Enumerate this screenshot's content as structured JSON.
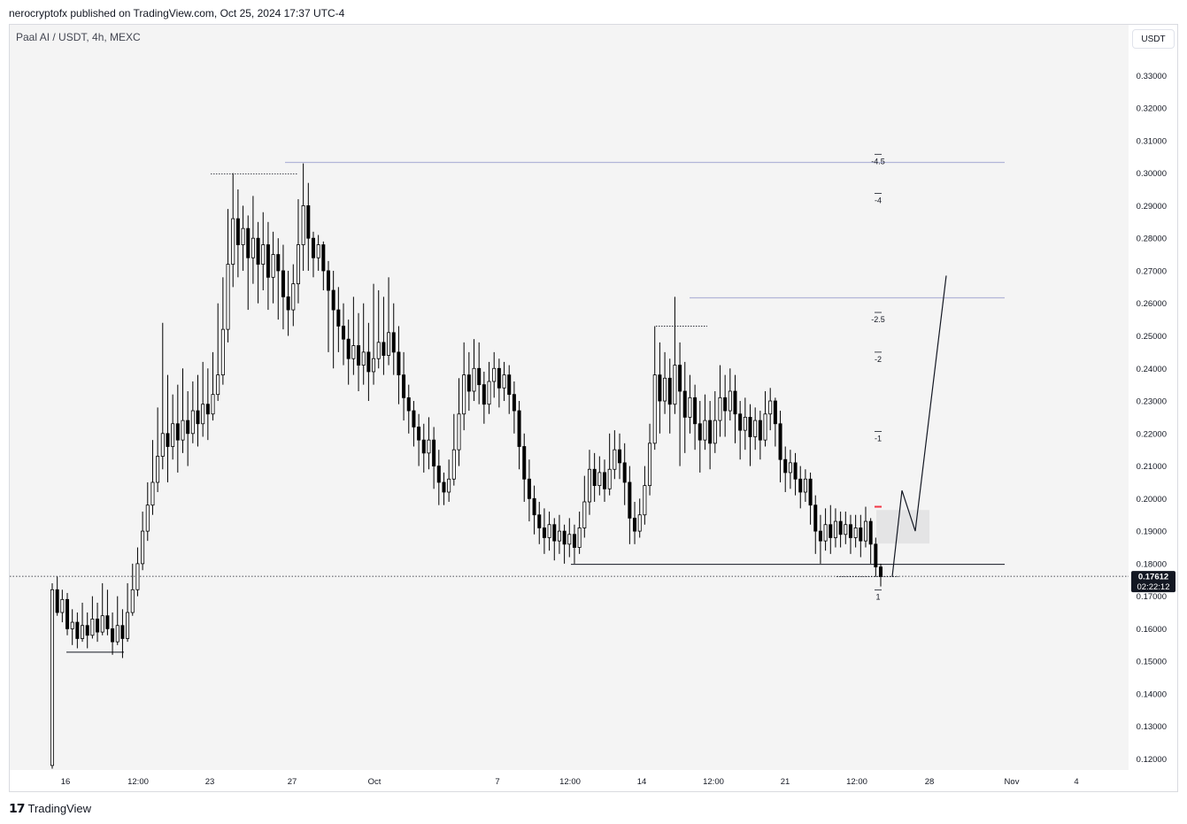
{
  "header": {
    "published": "nerocryptofx published on TradingView.com, Oct 25, 2024 17:37 UTC-4"
  },
  "chart_header": {
    "symbol": "Paal AI / USDT, 4h, MEXC",
    "currency_button": "USDT"
  },
  "footer": {
    "brand": "TradingView"
  },
  "colors": {
    "background": "#f4f4f4",
    "candle_up": "#ffffff",
    "candle_down": "#000000",
    "level_line": "#b2b5d8",
    "price_label_bg": "#131722",
    "bar_marker": "#f23645"
  },
  "price_tag": {
    "price": "0.17612",
    "countdown": "02:22:12"
  },
  "chart_data": {
    "type": "candlestick",
    "title": "Paal AI / USDT, 4h, MEXC",
    "y_axis": {
      "range": [
        0.115,
        0.336
      ],
      "ticks": [
        "0.33000",
        "0.32000",
        "0.31000",
        "0.30000",
        "0.29000",
        "0.28000",
        "0.27000",
        "0.26000",
        "0.25000",
        "0.24000",
        "0.23000",
        "0.22000",
        "0.21000",
        "0.20000",
        "0.19000",
        "0.18000",
        "0.17000",
        "0.16000",
        "0.15000",
        "0.14000",
        "0.13000",
        "0.12000"
      ]
    },
    "x_axis": {
      "ticks": [
        "16",
        "12:00",
        "23",
        "27",
        "Oct",
        "7",
        "12:00",
        "14",
        "12:00",
        "21",
        "12:00",
        "28",
        "Nov",
        "4"
      ]
    },
    "current_price": 0.17612,
    "levels": [
      {
        "name": "high-level",
        "price": 0.3033
      },
      {
        "name": "mid-level",
        "price": 0.2617
      },
      {
        "name": "support-level",
        "price": 0.1798
      },
      {
        "name": "range-low",
        "price": 0.1528
      }
    ],
    "fib_labels": [
      {
        "label": "-4.5",
        "price": 0.3058
      },
      {
        "label": "-4",
        "price": 0.2938
      },
      {
        "label": "-2.5",
        "price": 0.2572
      },
      {
        "label": "-2",
        "price": 0.245
      },
      {
        "label": "-1",
        "price": 0.2206
      },
      {
        "label": "1",
        "price": 0.1719
      }
    ],
    "projection": [
      0.176,
      0.2025,
      0.19,
      0.2685
    ],
    "candles": [
      [
        0.118,
        0.172,
        0.117,
        0.174
      ],
      [
        0.172,
        0.165,
        0.164,
        0.176
      ],
      [
        0.165,
        0.169,
        0.162,
        0.172
      ],
      [
        0.169,
        0.16,
        0.158,
        0.171
      ],
      [
        0.16,
        0.162,
        0.155,
        0.166
      ],
      [
        0.162,
        0.157,
        0.154,
        0.165
      ],
      [
        0.157,
        0.161,
        0.156,
        0.168
      ],
      [
        0.161,
        0.158,
        0.154,
        0.165
      ],
      [
        0.158,
        0.163,
        0.157,
        0.17
      ],
      [
        0.163,
        0.159,
        0.156,
        0.168
      ],
      [
        0.159,
        0.164,
        0.158,
        0.174
      ],
      [
        0.164,
        0.16,
        0.158,
        0.172
      ],
      [
        0.16,
        0.156,
        0.152,
        0.165
      ],
      [
        0.156,
        0.161,
        0.155,
        0.17
      ],
      [
        0.161,
        0.157,
        0.151,
        0.166
      ],
      [
        0.157,
        0.165,
        0.156,
        0.174
      ],
      [
        0.165,
        0.172,
        0.164,
        0.18
      ],
      [
        0.172,
        0.18,
        0.17,
        0.185
      ],
      [
        0.18,
        0.19,
        0.178,
        0.196
      ],
      [
        0.19,
        0.198,
        0.187,
        0.205
      ],
      [
        0.198,
        0.205,
        0.195,
        0.218
      ],
      [
        0.205,
        0.213,
        0.202,
        0.228
      ],
      [
        0.213,
        0.22,
        0.209,
        0.254
      ],
      [
        0.22,
        0.216,
        0.205,
        0.238
      ],
      [
        0.216,
        0.223,
        0.212,
        0.232
      ],
      [
        0.223,
        0.218,
        0.208,
        0.235
      ],
      [
        0.218,
        0.224,
        0.214,
        0.24
      ],
      [
        0.224,
        0.22,
        0.21,
        0.233
      ],
      [
        0.22,
        0.227,
        0.217,
        0.236
      ],
      [
        0.227,
        0.223,
        0.216,
        0.238
      ],
      [
        0.223,
        0.229,
        0.219,
        0.242
      ],
      [
        0.229,
        0.226,
        0.218,
        0.24
      ],
      [
        0.226,
        0.232,
        0.224,
        0.245
      ],
      [
        0.232,
        0.238,
        0.23,
        0.26
      ],
      [
        0.238,
        0.252,
        0.235,
        0.268
      ],
      [
        0.252,
        0.272,
        0.248,
        0.289
      ],
      [
        0.272,
        0.286,
        0.265,
        0.3
      ],
      [
        0.286,
        0.278,
        0.268,
        0.295
      ],
      [
        0.278,
        0.283,
        0.27,
        0.29
      ],
      [
        0.283,
        0.274,
        0.258,
        0.287
      ],
      [
        0.274,
        0.28,
        0.266,
        0.293
      ],
      [
        0.28,
        0.272,
        0.26,
        0.285
      ],
      [
        0.272,
        0.278,
        0.264,
        0.288
      ],
      [
        0.278,
        0.268,
        0.258,
        0.285
      ],
      [
        0.268,
        0.275,
        0.26,
        0.282
      ],
      [
        0.275,
        0.27,
        0.255,
        0.28
      ],
      [
        0.27,
        0.262,
        0.252,
        0.278
      ],
      [
        0.262,
        0.258,
        0.25,
        0.27
      ],
      [
        0.258,
        0.266,
        0.253,
        0.272
      ],
      [
        0.266,
        0.278,
        0.26,
        0.292
      ],
      [
        0.278,
        0.29,
        0.27,
        0.303
      ],
      [
        0.29,
        0.28,
        0.27,
        0.297
      ],
      [
        0.28,
        0.274,
        0.268,
        0.282
      ],
      [
        0.274,
        0.278,
        0.27,
        0.281
      ],
      [
        0.278,
        0.27,
        0.264,
        0.279
      ],
      [
        0.27,
        0.264,
        0.245,
        0.273
      ],
      [
        0.264,
        0.258,
        0.24,
        0.27
      ],
      [
        0.258,
        0.253,
        0.245,
        0.265
      ],
      [
        0.253,
        0.249,
        0.241,
        0.26
      ],
      [
        0.249,
        0.243,
        0.235,
        0.255
      ],
      [
        0.243,
        0.247,
        0.238,
        0.262
      ],
      [
        0.247,
        0.241,
        0.233,
        0.257
      ],
      [
        0.241,
        0.245,
        0.235,
        0.26
      ],
      [
        0.245,
        0.239,
        0.23,
        0.254
      ],
      [
        0.239,
        0.243,
        0.235,
        0.266
      ],
      [
        0.243,
        0.248,
        0.24,
        0.264
      ],
      [
        0.248,
        0.244,
        0.238,
        0.262
      ],
      [
        0.244,
        0.251,
        0.241,
        0.268
      ],
      [
        0.251,
        0.245,
        0.238,
        0.26
      ],
      [
        0.245,
        0.238,
        0.229,
        0.253
      ],
      [
        0.238,
        0.231,
        0.224,
        0.245
      ],
      [
        0.231,
        0.227,
        0.22,
        0.235
      ],
      [
        0.227,
        0.222,
        0.216,
        0.23
      ],
      [
        0.222,
        0.218,
        0.21,
        0.226
      ],
      [
        0.218,
        0.214,
        0.208,
        0.223
      ],
      [
        0.214,
        0.218,
        0.209,
        0.225
      ],
      [
        0.218,
        0.21,
        0.203,
        0.222
      ],
      [
        0.21,
        0.205,
        0.198,
        0.215
      ],
      [
        0.205,
        0.202,
        0.198,
        0.208
      ],
      [
        0.202,
        0.206,
        0.199,
        0.212
      ],
      [
        0.206,
        0.215,
        0.204,
        0.226
      ],
      [
        0.215,
        0.226,
        0.21,
        0.237
      ],
      [
        0.226,
        0.238,
        0.221,
        0.248
      ],
      [
        0.238,
        0.233,
        0.227,
        0.245
      ],
      [
        0.233,
        0.24,
        0.23,
        0.249
      ],
      [
        0.24,
        0.235,
        0.229,
        0.248
      ],
      [
        0.235,
        0.229,
        0.223,
        0.239
      ],
      [
        0.229,
        0.236,
        0.226,
        0.242
      ],
      [
        0.236,
        0.24,
        0.231,
        0.245
      ],
      [
        0.24,
        0.234,
        0.228,
        0.243
      ],
      [
        0.234,
        0.238,
        0.23,
        0.242
      ],
      [
        0.238,
        0.232,
        0.226,
        0.241
      ],
      [
        0.232,
        0.227,
        0.22,
        0.236
      ],
      [
        0.227,
        0.216,
        0.209,
        0.23
      ],
      [
        0.216,
        0.206,
        0.199,
        0.22
      ],
      [
        0.206,
        0.2,
        0.193,
        0.212
      ],
      [
        0.2,
        0.195,
        0.189,
        0.204
      ],
      [
        0.195,
        0.191,
        0.186,
        0.199
      ],
      [
        0.191,
        0.188,
        0.183,
        0.197
      ],
      [
        0.188,
        0.192,
        0.184,
        0.196
      ],
      [
        0.192,
        0.187,
        0.181,
        0.194
      ],
      [
        0.187,
        0.19,
        0.183,
        0.195
      ],
      [
        0.19,
        0.186,
        0.18,
        0.192
      ],
      [
        0.186,
        0.189,
        0.182,
        0.194
      ],
      [
        0.189,
        0.185,
        0.18,
        0.192
      ],
      [
        0.185,
        0.191,
        0.183,
        0.196
      ],
      [
        0.191,
        0.199,
        0.188,
        0.207
      ],
      [
        0.199,
        0.209,
        0.195,
        0.215
      ],
      [
        0.209,
        0.204,
        0.199,
        0.214
      ],
      [
        0.204,
        0.208,
        0.201,
        0.213
      ],
      [
        0.208,
        0.203,
        0.199,
        0.212
      ],
      [
        0.203,
        0.209,
        0.201,
        0.22
      ],
      [
        0.209,
        0.215,
        0.206,
        0.221
      ],
      [
        0.215,
        0.211,
        0.206,
        0.22
      ],
      [
        0.211,
        0.205,
        0.198,
        0.217
      ],
      [
        0.205,
        0.194,
        0.186,
        0.21
      ],
      [
        0.194,
        0.19,
        0.186,
        0.199
      ],
      [
        0.19,
        0.195,
        0.188,
        0.2
      ],
      [
        0.195,
        0.204,
        0.192,
        0.21
      ],
      [
        0.204,
        0.217,
        0.201,
        0.223
      ],
      [
        0.217,
        0.238,
        0.215,
        0.253
      ],
      [
        0.238,
        0.23,
        0.22,
        0.248
      ],
      [
        0.23,
        0.237,
        0.226,
        0.245
      ],
      [
        0.237,
        0.229,
        0.22,
        0.243
      ],
      [
        0.229,
        0.241,
        0.226,
        0.262
      ],
      [
        0.241,
        0.233,
        0.21,
        0.248
      ],
      [
        0.233,
        0.225,
        0.214,
        0.242
      ],
      [
        0.225,
        0.231,
        0.22,
        0.238
      ],
      [
        0.231,
        0.223,
        0.215,
        0.235
      ],
      [
        0.223,
        0.218,
        0.208,
        0.23
      ],
      [
        0.218,
        0.224,
        0.215,
        0.232
      ],
      [
        0.224,
        0.217,
        0.209,
        0.23
      ],
      [
        0.217,
        0.224,
        0.214,
        0.233
      ],
      [
        0.224,
        0.231,
        0.219,
        0.241
      ],
      [
        0.231,
        0.227,
        0.219,
        0.238
      ],
      [
        0.227,
        0.233,
        0.224,
        0.24
      ],
      [
        0.233,
        0.226,
        0.217,
        0.238
      ],
      [
        0.226,
        0.221,
        0.212,
        0.23
      ],
      [
        0.221,
        0.225,
        0.215,
        0.231
      ],
      [
        0.225,
        0.219,
        0.21,
        0.229
      ],
      [
        0.219,
        0.224,
        0.215,
        0.228
      ],
      [
        0.224,
        0.218,
        0.212,
        0.227
      ],
      [
        0.218,
        0.226,
        0.216,
        0.233
      ],
      [
        0.226,
        0.23,
        0.221,
        0.234
      ],
      [
        0.23,
        0.223,
        0.216,
        0.231
      ],
      [
        0.223,
        0.212,
        0.205,
        0.227
      ],
      [
        0.212,
        0.208,
        0.202,
        0.216
      ],
      [
        0.208,
        0.211,
        0.203,
        0.215
      ],
      [
        0.211,
        0.206,
        0.201,
        0.214
      ],
      [
        0.206,
        0.202,
        0.197,
        0.21
      ],
      [
        0.202,
        0.206,
        0.199,
        0.209
      ],
      [
        0.206,
        0.198,
        0.192,
        0.208
      ],
      [
        0.198,
        0.19,
        0.183,
        0.201
      ],
      [
        0.19,
        0.187,
        0.18,
        0.195
      ],
      [
        0.187,
        0.192,
        0.184,
        0.197
      ],
      [
        0.192,
        0.188,
        0.183,
        0.198
      ],
      [
        0.188,
        0.193,
        0.185,
        0.197
      ],
      [
        0.193,
        0.189,
        0.185,
        0.196
      ],
      [
        0.189,
        0.192,
        0.186,
        0.196
      ],
      [
        0.192,
        0.188,
        0.183,
        0.195
      ],
      [
        0.188,
        0.191,
        0.185,
        0.195
      ],
      [
        0.191,
        0.187,
        0.182,
        0.195
      ],
      [
        0.187,
        0.193,
        0.185,
        0.1975
      ],
      [
        0.193,
        0.186,
        0.18,
        0.194
      ],
      [
        0.186,
        0.179,
        0.176,
        0.188
      ],
      [
        0.179,
        0.1761,
        0.173,
        0.18
      ]
    ]
  }
}
